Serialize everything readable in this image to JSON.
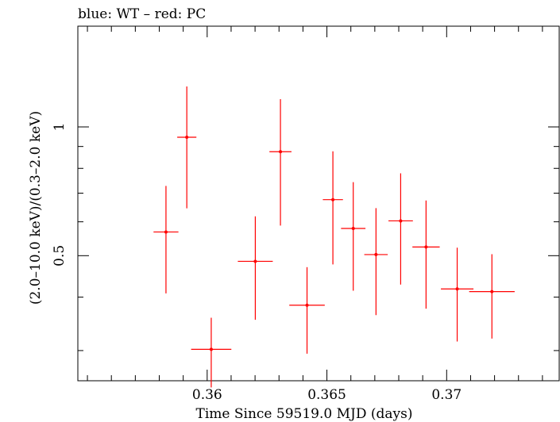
{
  "header": {
    "title": "blue: WT – red: PC"
  },
  "chart_data": {
    "type": "scatter",
    "title": "blue: WT – red: PC",
    "xlabel": "Time Since 59519.0 MJD (days)",
    "ylabel": "(2.0–10.0 keV)/(0.3–2.0 keV)",
    "xlim": [
      0.3546,
      0.3747
    ],
    "ylim": [
      0.255,
      1.72
    ],
    "yscale": "log",
    "grid": false,
    "x_ticks": [
      {
        "value": 0.36,
        "label": "0.36"
      },
      {
        "value": 0.365,
        "label": "0.365"
      },
      {
        "value": 0.37,
        "label": "0.37"
      }
    ],
    "y_ticks": [
      {
        "value": 0.5,
        "label": "0.5"
      },
      {
        "value": 1,
        "label": "1"
      }
    ],
    "series": [
      {
        "color": "#ff0000",
        "points": [
          {
            "x": 0.35828,
            "xerr": 0.00052,
            "y": 0.568,
            "ylo": 0.408,
            "yhi": 0.728
          },
          {
            "x": 0.35915,
            "xerr": 0.0004,
            "y": 0.946,
            "ylo": 0.645,
            "yhi": 1.243
          },
          {
            "x": 0.36017,
            "xerr": 0.00084,
            "y": 0.302,
            "ylo": 0.246,
            "yhi": 0.358
          },
          {
            "x": 0.36201,
            "xerr": 0.00073,
            "y": 0.485,
            "ylo": 0.354,
            "yhi": 0.618
          },
          {
            "x": 0.36306,
            "xerr": 0.00046,
            "y": 0.875,
            "ylo": 0.588,
            "yhi": 1.161
          },
          {
            "x": 0.36417,
            "xerr": 0.00074,
            "y": 0.383,
            "ylo": 0.295,
            "yhi": 0.47
          },
          {
            "x": 0.36525,
            "xerr": 0.00042,
            "y": 0.676,
            "ylo": 0.477,
            "yhi": 0.877
          },
          {
            "x": 0.3661,
            "xerr": 0.00051,
            "y": 0.579,
            "ylo": 0.414,
            "yhi": 0.743
          },
          {
            "x": 0.36705,
            "xerr": 0.00049,
            "y": 0.503,
            "ylo": 0.363,
            "yhi": 0.646
          },
          {
            "x": 0.36808,
            "xerr": 0.00051,
            "y": 0.603,
            "ylo": 0.428,
            "yhi": 0.779
          },
          {
            "x": 0.36914,
            "xerr": 0.00057,
            "y": 0.524,
            "ylo": 0.376,
            "yhi": 0.673
          },
          {
            "x": 0.37044,
            "xerr": 0.00068,
            "y": 0.418,
            "ylo": 0.315,
            "yhi": 0.522
          },
          {
            "x": 0.37189,
            "xerr": 0.00095,
            "y": 0.412,
            "ylo": 0.32,
            "yhi": 0.504
          }
        ]
      }
    ]
  }
}
